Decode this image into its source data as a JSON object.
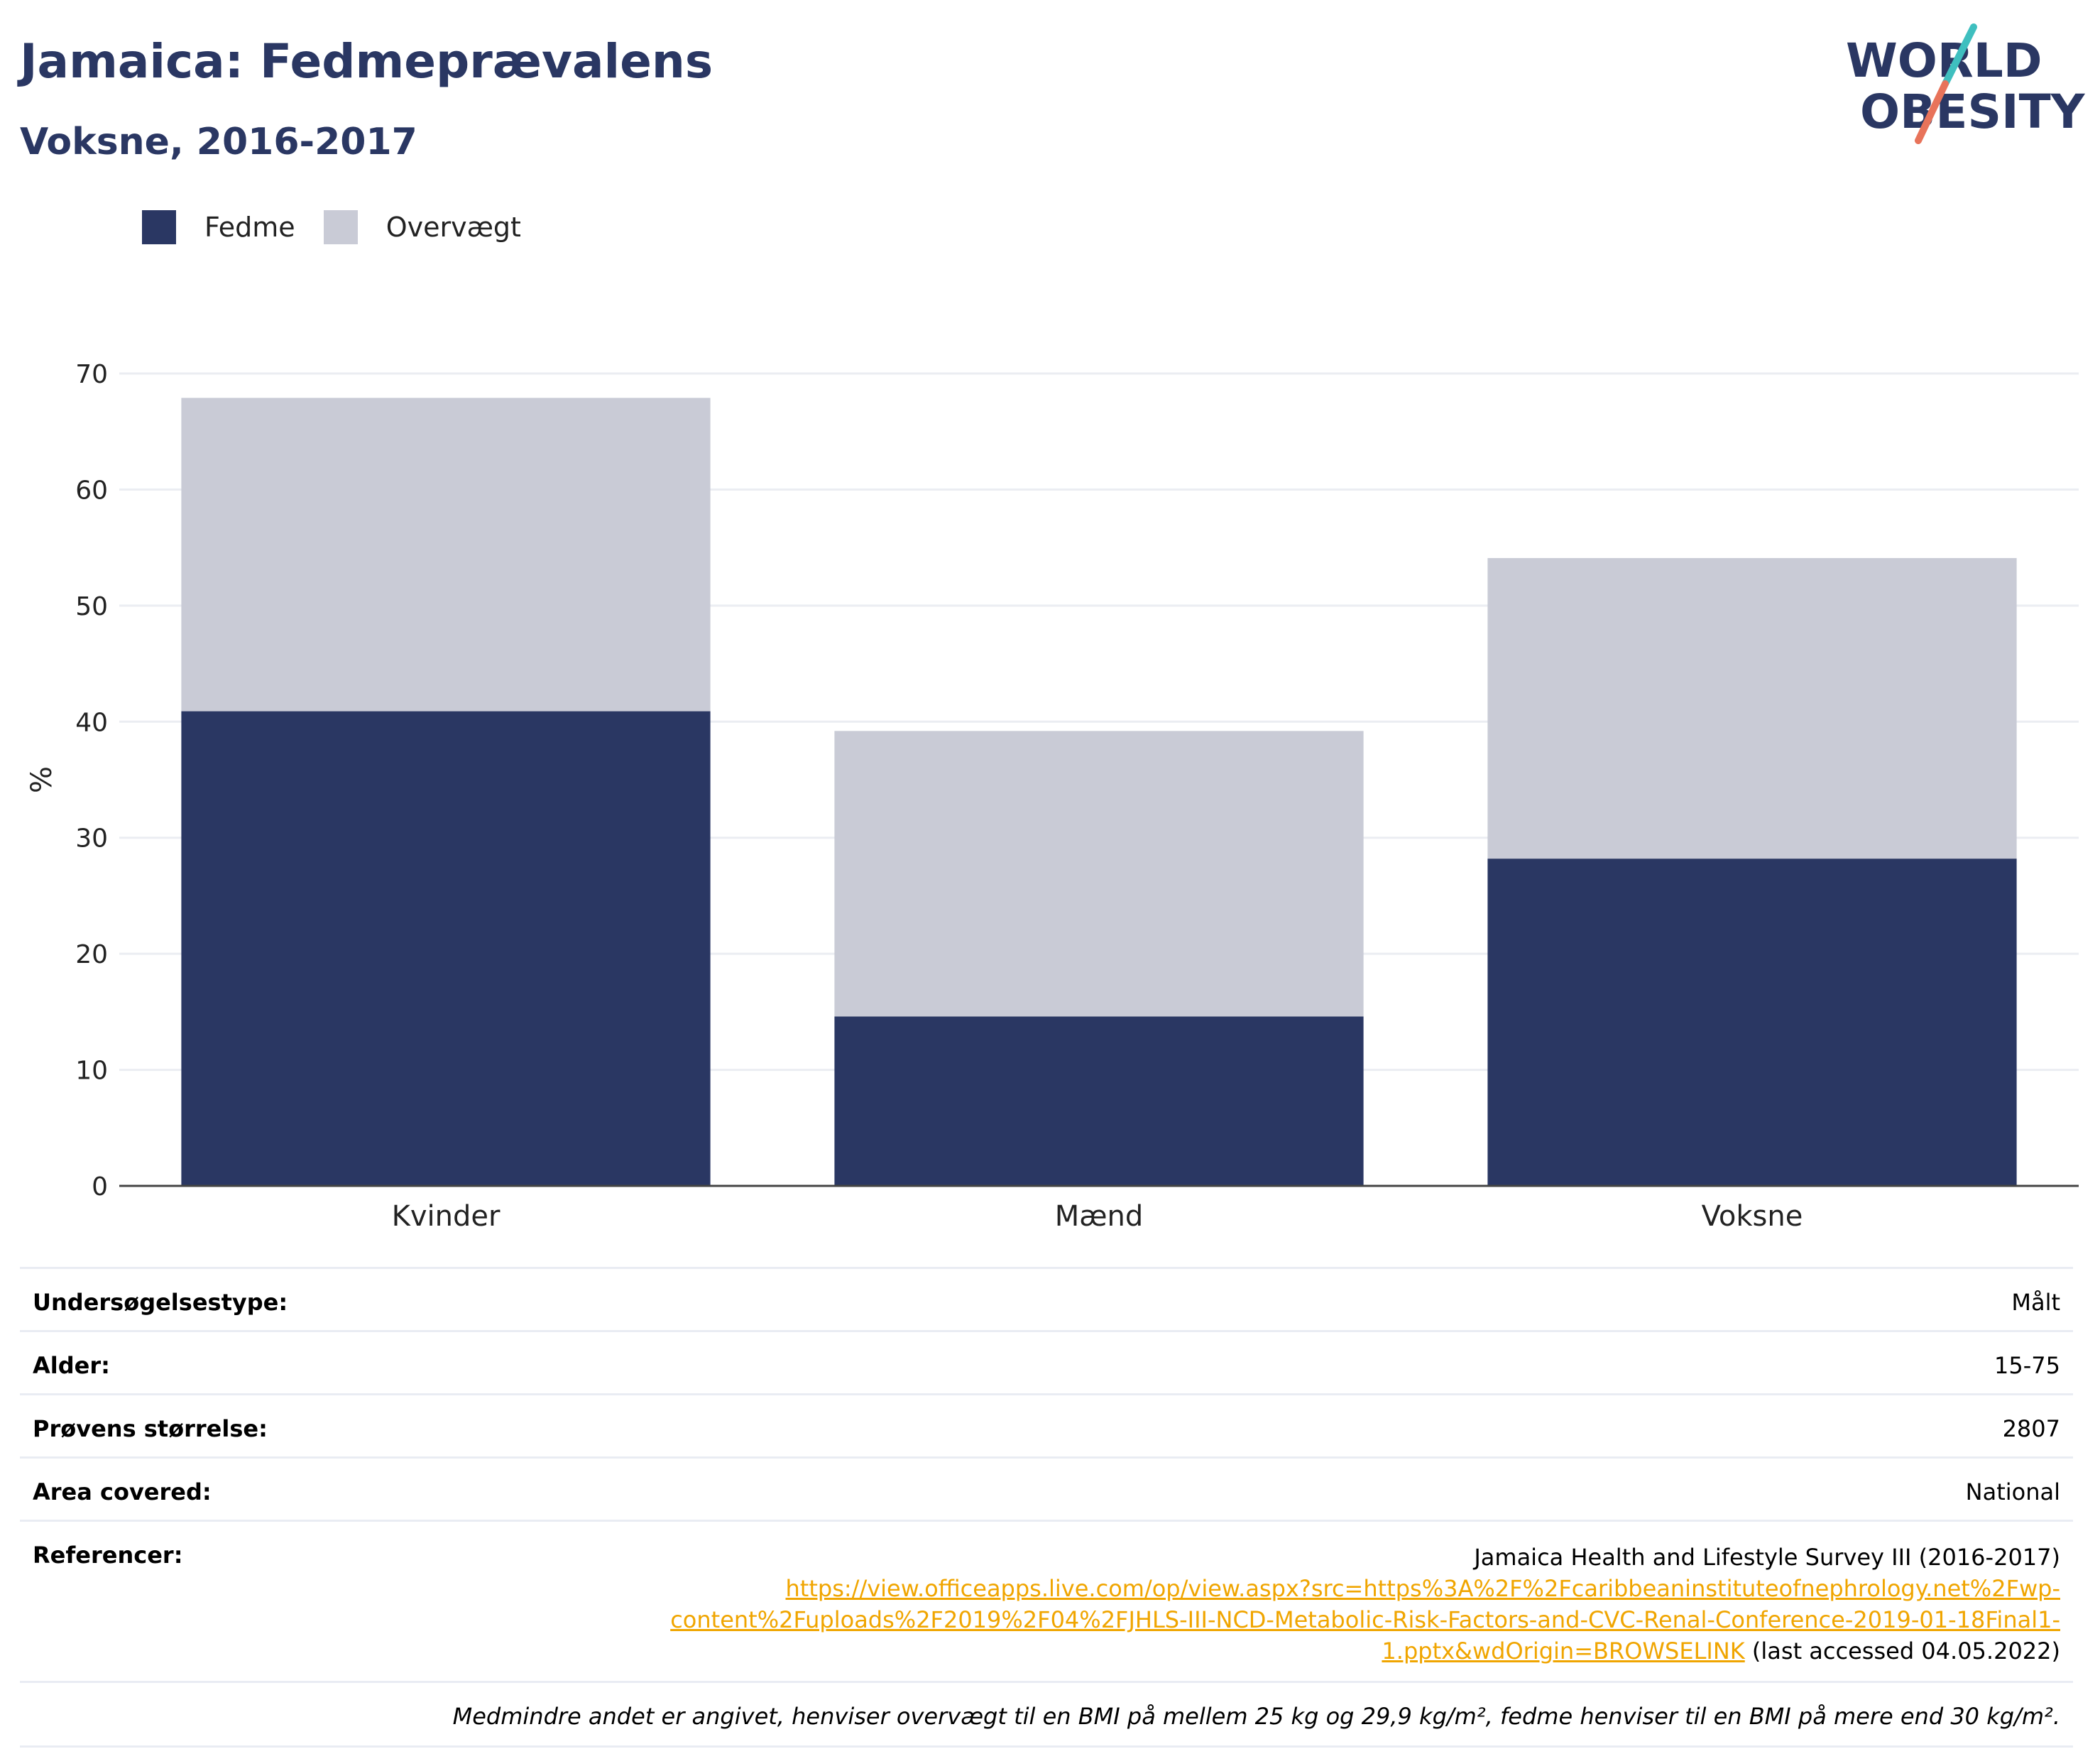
{
  "header": {
    "title": "Jamaica: Fedmeprævalens",
    "subtitle": "Voksne, 2016-2017"
  },
  "logo": {
    "line1": "WORLD",
    "line2": "OBESITY",
    "colors": {
      "text": "#2a3763",
      "slash_top": "#3fbfbf",
      "slash_bottom": "#e8735a"
    }
  },
  "chart_data": {
    "type": "bar",
    "stacked": true,
    "categories": [
      "Kvinder",
      "Mænd",
      "Voksne"
    ],
    "series": [
      {
        "name": "Fedme",
        "values": [
          40.9,
          14.6,
          28.2
        ],
        "color": "#2a3763"
      },
      {
        "name": "Overvægt",
        "values": [
          27.0,
          24.6,
          25.9
        ],
        "color": "#c9cbd6"
      }
    ],
    "ylabel": "%",
    "ylim": [
      0,
      70
    ],
    "yticks": [
      0,
      10,
      20,
      30,
      40,
      50,
      60,
      70
    ],
    "grid": true,
    "legend_position": "top-left"
  },
  "details": {
    "survey_type_label": "Undersøgelsestype:",
    "survey_type_value": "Målt",
    "age_label": "Alder:",
    "age_value": "15-75",
    "sample_size_label": "Prøvens størrelse:",
    "sample_size_value": "2807",
    "area_label": "Area covered:",
    "area_value": "National",
    "references_label": "Referencer:",
    "references_source": "Jamaica Health and Lifestyle Survey III (2016-2017)",
    "references_link_1": "https://view.officeapps.live.com/op/view.aspx?src=https%3A%2F%2Fcaribbeaninstituteofnephrology.net%2Fwp-",
    "references_link_2": "content%2Fuploads%2F2019%2F04%2FJHLS-III-NCD-Metabolic-Risk-Factors-and-CVC-Renal-Conference-2019-01-18Final1-",
    "references_link_3": "1.pptx&wdOrigin=BROWSELINK",
    "references_accessed": " (last accessed 04.05.2022)",
    "note": "Medmindre andet er angivet, henviser overvægt til en BMI på mellem 25 kg og 29,9 kg/m², fedme henviser til en BMI på mere end 30 kg/m²."
  }
}
